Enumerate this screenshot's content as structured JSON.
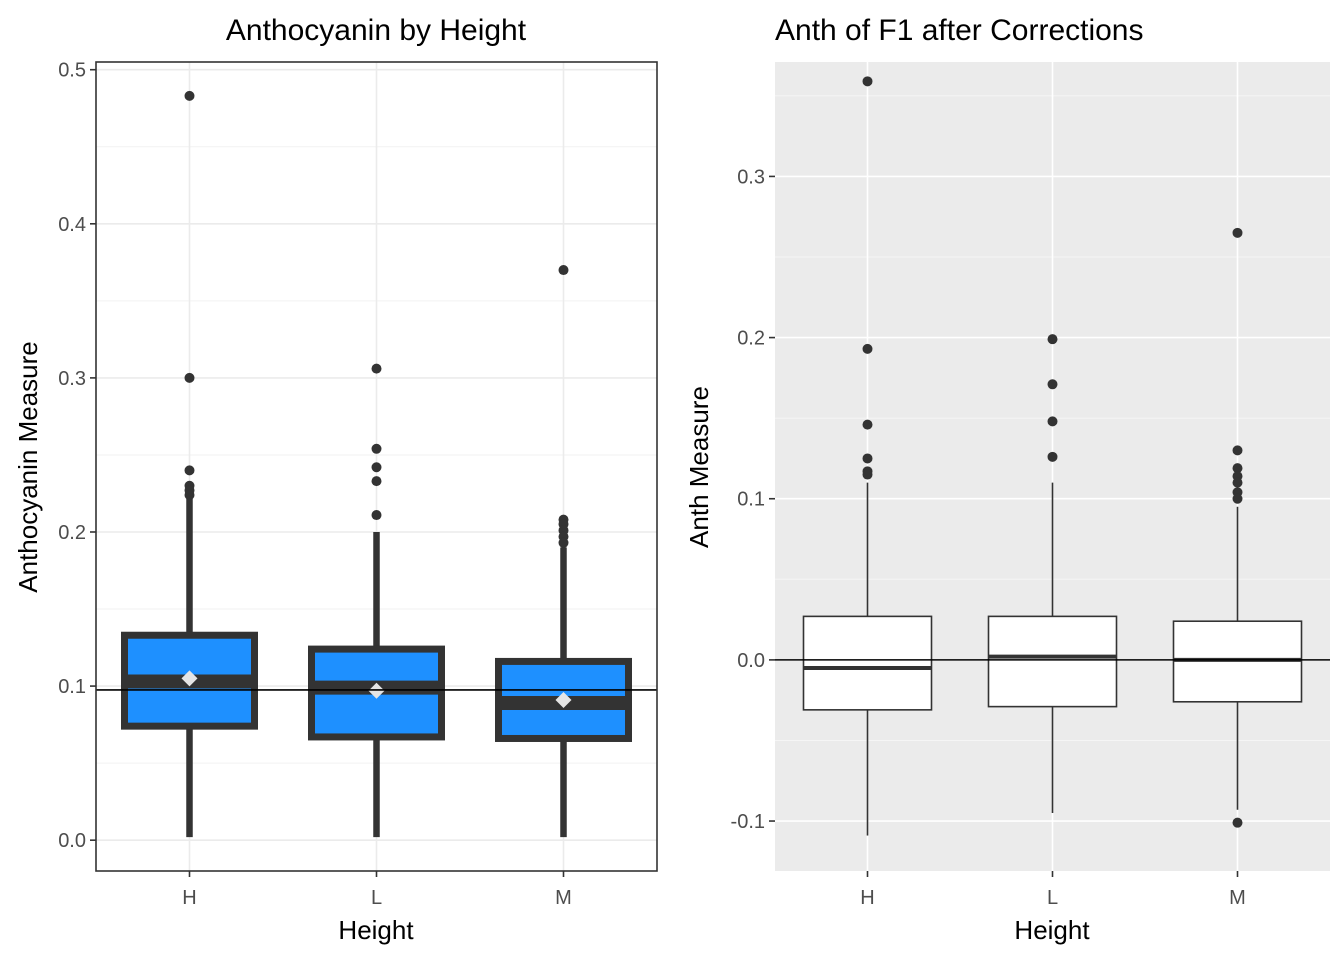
{
  "chart_data": [
    {
      "type": "boxplot",
      "title": "Anthocyanin by Height",
      "xlabel": "Height",
      "ylabel": "Anthocyanin Measure",
      "categories": [
        "H",
        "L",
        "M"
      ],
      "ylim": [
        -0.02,
        0.505
      ],
      "yticks": [
        0.0,
        0.1,
        0.2,
        0.3,
        0.4,
        0.5
      ],
      "ytick_labels": [
        "0.0",
        "0.1",
        "0.2",
        "0.3",
        "0.4",
        "0.5"
      ],
      "theme": "bw",
      "grid": true,
      "box_fill": "#1E90FF",
      "box_line": "#333333",
      "mean_marker_color": "#E5E5E5",
      "hline": 0.0975,
      "boxes": [
        {
          "category": "H",
          "whisker_low": 0.002,
          "q1": 0.074,
          "median": 0.103,
          "q3": 0.133,
          "whisker_high": 0.222,
          "mean": 0.105,
          "outliers": [
            0.483,
            0.3,
            0.24,
            0.23,
            0.227,
            0.224
          ]
        },
        {
          "category": "L",
          "whisker_low": 0.002,
          "q1": 0.067,
          "median": 0.099,
          "q3": 0.124,
          "whisker_high": 0.2,
          "mean": 0.097,
          "outliers": [
            0.306,
            0.254,
            0.242,
            0.233,
            0.211
          ]
        },
        {
          "category": "M",
          "whisker_low": 0.002,
          "q1": 0.066,
          "median": 0.089,
          "q3": 0.116,
          "whisker_high": 0.19,
          "mean": 0.091,
          "outliers": [
            0.37,
            0.208,
            0.205,
            0.201,
            0.197,
            0.193
          ]
        }
      ]
    },
    {
      "type": "boxplot",
      "title": "Anth of F1 after Corrections",
      "xlabel": "Height",
      "ylabel": "Anth Measure",
      "categories": [
        "H",
        "L",
        "M"
      ],
      "ylim": [
        -0.131,
        0.371
      ],
      "yticks": [
        -0.1,
        0.0,
        0.1,
        0.2,
        0.3
      ],
      "ytick_labels": [
        "-0.1",
        "0.0",
        "0.1",
        "0.2",
        "0.3"
      ],
      "theme": "grey",
      "grid": true,
      "box_fill": "#FFFFFF",
      "box_line": "#333333",
      "hline": 0.0,
      "boxes": [
        {
          "category": "H",
          "whisker_low": -0.109,
          "q1": -0.031,
          "median": -0.005,
          "q3": 0.027,
          "whisker_high": 0.11,
          "outliers": [
            0.359,
            0.193,
            0.146,
            0.125,
            0.117,
            0.115
          ]
        },
        {
          "category": "L",
          "whisker_low": -0.095,
          "q1": -0.029,
          "median": 0.002,
          "q3": 0.027,
          "whisker_high": 0.11,
          "outliers": [
            0.199,
            0.171,
            0.148,
            0.126
          ]
        },
        {
          "category": "M",
          "whisker_low": -0.093,
          "q1": -0.026,
          "median": 0.0,
          "q3": 0.024,
          "whisker_high": 0.095,
          "outliers": [
            0.265,
            0.13,
            0.119,
            0.114,
            0.11,
            0.104,
            0.1,
            -0.101
          ]
        }
      ]
    }
  ]
}
